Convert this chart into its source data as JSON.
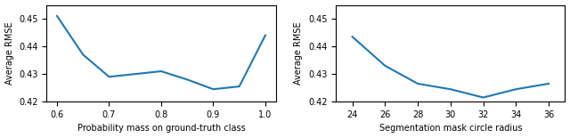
{
  "plot1": {
    "x": [
      0.6,
      0.65,
      0.7,
      0.75,
      0.8,
      0.85,
      0.9,
      0.95,
      1.0
    ],
    "y": [
      0.451,
      0.437,
      0.429,
      0.43,
      0.431,
      0.428,
      0.4245,
      0.4255,
      0.444
    ],
    "xlabel": "Probability mass on ground-truth class",
    "ylabel": "Average RMSE",
    "xlim": [
      0.58,
      1.02
    ],
    "ylim": [
      0.42,
      0.455
    ],
    "xticks": [
      0.6,
      0.7,
      0.8,
      0.9,
      1.0
    ],
    "yticks": [
      0.42,
      0.43,
      0.44,
      0.45
    ]
  },
  "plot2": {
    "x": [
      24,
      26,
      28,
      30,
      32,
      34,
      36
    ],
    "y": [
      0.4435,
      0.433,
      0.4265,
      0.4245,
      0.4215,
      0.4245,
      0.4265
    ],
    "xlabel": "Segmentation mask circle radius",
    "ylabel": "Average RMSE",
    "xlim": [
      23,
      37
    ],
    "ylim": [
      0.42,
      0.455
    ],
    "xticks": [
      24,
      26,
      28,
      30,
      32,
      34,
      36
    ],
    "yticks": [
      0.42,
      0.43,
      0.44,
      0.45
    ]
  },
  "line_color": "#1f77b4",
  "line_width": 1.5,
  "tick_labelsize": 7,
  "label_fontsize": 7
}
